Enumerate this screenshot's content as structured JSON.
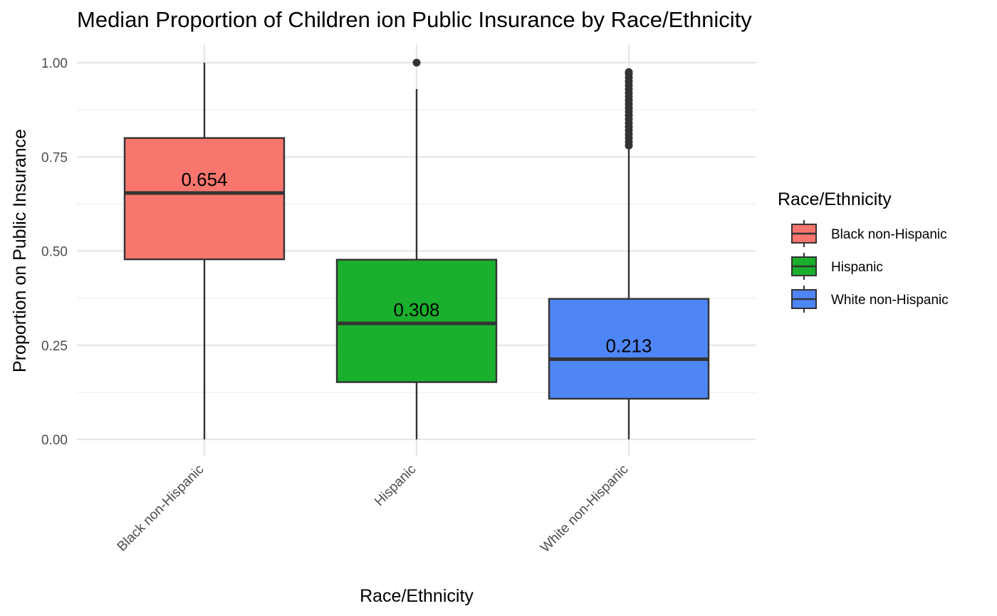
{
  "chart_data": {
    "type": "box",
    "title": "Median Proportion of Children ion Public Insurance by Race/Ethnicity",
    "xlabel": "Race/Ethnicity",
    "ylabel": "Proportion on Public Insurance",
    "ylim": [
      0,
      1
    ],
    "yticks": [
      0,
      0.25,
      0.5,
      0.75,
      1
    ],
    "ytick_labels": [
      "0.00",
      "0.25",
      "0.50",
      "0.75",
      "1.00"
    ],
    "grid": true,
    "legend_position": "right",
    "legend_title": "Race/Ethnicity",
    "categories": [
      "Black non-Hispanic",
      "Hispanic",
      "White non-Hispanic"
    ],
    "colors": [
      "#F8766D",
      "#1aaf2d",
      "#4f86f7"
    ],
    "boxes": [
      {
        "category": "Black non-Hispanic",
        "min": 0.0,
        "q1": 0.478,
        "median": 0.654,
        "q3": 0.8,
        "max": 1.0,
        "median_label": "0.654",
        "outliers": []
      },
      {
        "category": "Hispanic",
        "min": 0.0,
        "q1": 0.152,
        "median": 0.308,
        "q3": 0.477,
        "max": 0.93,
        "median_label": "0.308",
        "outliers": [
          1.0
        ]
      },
      {
        "category": "White non-Hispanic",
        "min": 0.0,
        "q1": 0.108,
        "median": 0.213,
        "q3": 0.373,
        "max": 0.77,
        "median_label": "0.213",
        "outliers": [
          0.78,
          0.79,
          0.8,
          0.81,
          0.82,
          0.83,
          0.84,
          0.85,
          0.86,
          0.87,
          0.88,
          0.89,
          0.9,
          0.91,
          0.92,
          0.93,
          0.94,
          0.95,
          0.96,
          0.97,
          0.975
        ]
      }
    ]
  }
}
